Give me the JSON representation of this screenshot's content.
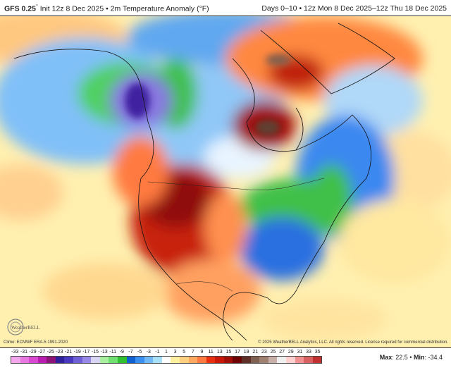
{
  "header": {
    "model": "GFS 0.25",
    "model_suffix": "°",
    "init": "Init 12z 8 Dec 2025",
    "separator": "•",
    "field": "2m Temperature Anomaly (°F)",
    "range_days": "Days 0–10",
    "range_dates": "12z Mon 8 Dec 2025–12z Thu 18 Dec 2025"
  },
  "footer": {
    "climo": "Climo: ECMWF ERA-5 1991-2020",
    "copyright": "© 2025 WeatherBELL Analytics, LLC. All rights reserved. License required for commercial distribution.",
    "logo_text": "WeatherBELL"
  },
  "stats": {
    "max_label": "Max",
    "max": "22.5",
    "sep": "•",
    "min_label": "Min",
    "min": "-34.4"
  },
  "colorbar": {
    "labels": [
      "-33",
      "-31",
      "-29",
      "-27",
      "-25",
      "-23",
      "-21",
      "-19",
      "-17",
      "-15",
      "-13",
      "-11",
      "-9",
      "-7",
      "-5",
      "-3",
      "-1",
      "1",
      "3",
      "5",
      "7",
      "9",
      "11",
      "13",
      "15",
      "17",
      "19",
      "21",
      "23",
      "25",
      "27",
      "29",
      "31",
      "33",
      "35"
    ],
    "colors": [
      "#f4a6ec",
      "#e878e0",
      "#d848d0",
      "#b81cb0",
      "#8c1478",
      "#2e1f9c",
      "#4838c0",
      "#7060d8",
      "#9888e8",
      "#d8d4f4",
      "#a8f0a0",
      "#70e070",
      "#30c030",
      "#1060d0",
      "#3a90f0",
      "#70b8f8",
      "#a8e0f8",
      "#ffffff",
      "#fff0a0",
      "#ffd080",
      "#ffa860",
      "#ff7a40",
      "#e83010",
      "#c81808",
      "#a01008",
      "#700404",
      "#603028",
      "#806050",
      "#a08070",
      "#c8b0a8",
      "#f0f0f0",
      "#ffd0d0",
      "#f09090",
      "#d86060",
      "#c03030"
    ]
  }
}
